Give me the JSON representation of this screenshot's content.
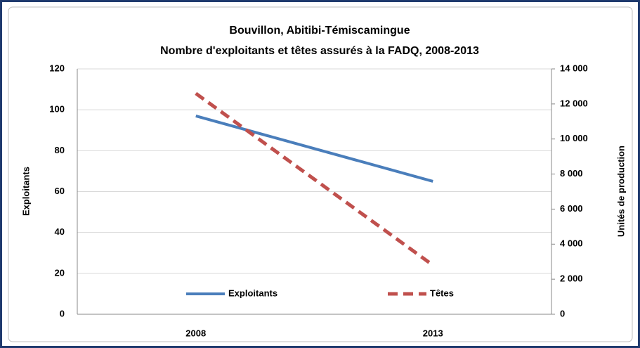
{
  "chart_data": {
    "type": "line",
    "title": "Bouvillon, Abitibi-Témiscamingue",
    "subtitle": "Nombre d'exploitants et têtes assurés à la FADQ, 2008-2013",
    "ylabel": "Exploitants",
    "y2label": "Unités de production",
    "categories": [
      "2008",
      "2013"
    ],
    "series": [
      {
        "name": "Exploitants",
        "color": "#4a7ebb",
        "dashed": false,
        "axis": "y",
        "values": [
          97,
          65
        ]
      },
      {
        "name": "Têtes",
        "color": "#c0504d",
        "dashed": true,
        "axis": "y2",
        "values": [
          12600,
          2800
        ]
      }
    ],
    "ylim": [
      0,
      120
    ],
    "yticks": [
      0,
      20,
      40,
      60,
      80,
      100,
      120
    ],
    "y2lim": [
      0,
      14000
    ],
    "y2ticks": [
      0,
      {
        "value": 2000,
        "label": "2 000"
      },
      {
        "value": 4000,
        "label": "4 000"
      },
      {
        "value": 6000,
        "label": "6 000"
      },
      {
        "value": 8000,
        "label": "8 000"
      },
      {
        "value": 10000,
        "label": "10 000"
      },
      {
        "value": 12000,
        "label": "12 000"
      },
      {
        "value": 14000,
        "label": "14 000"
      }
    ],
    "grid": true,
    "legend": "bottom"
  }
}
